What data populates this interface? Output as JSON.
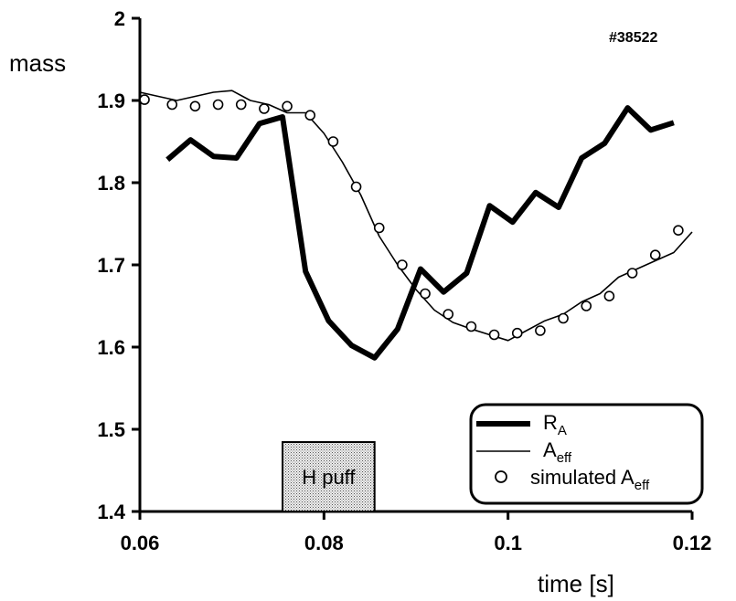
{
  "chart_data": {
    "type": "line",
    "xlabel": "time [s]",
    "ylabel": "mass",
    "annotation": "#38522",
    "xlim": [
      0.06,
      0.12
    ],
    "ylim": [
      1.4,
      2.0
    ],
    "xticks": [
      "0.06",
      "0.08",
      "0.1",
      "0.12"
    ],
    "yticks": [
      "1.4",
      "1.5",
      "1.6",
      "1.7",
      "1.8",
      "1.9",
      "2"
    ],
    "puff": {
      "label": "H puff",
      "start": 0.0755,
      "end": 0.0855
    },
    "legend": {
      "position": "bottom-right",
      "entries": [
        {
          "main": "R",
          "sub": "A",
          "style": "thick-line"
        },
        {
          "main": "A",
          "sub": "eff",
          "style": "thin-line"
        },
        {
          "main": "simulated A",
          "sub": "eff",
          "style": "circle"
        }
      ]
    },
    "series": [
      {
        "name": "R_A",
        "style": "thick",
        "x": [
          0.063,
          0.0655,
          0.068,
          0.0705,
          0.073,
          0.0755,
          0.078,
          0.0805,
          0.083,
          0.0855,
          0.088,
          0.0905,
          0.093,
          0.0955,
          0.098,
          0.1005,
          0.103,
          0.1055,
          0.108,
          0.1105,
          0.113,
          0.1155,
          0.118
        ],
        "y": [
          1.828,
          1.852,
          1.832,
          1.83,
          1.872,
          1.88,
          1.692,
          1.632,
          1.602,
          1.587,
          1.622,
          1.695,
          1.667,
          1.69,
          1.772,
          1.752,
          1.788,
          1.77,
          1.83,
          1.848,
          1.891,
          1.864,
          1.873
        ]
      },
      {
        "name": "A_eff",
        "style": "thin",
        "x": [
          0.06,
          0.062,
          0.064,
          0.066,
          0.068,
          0.07,
          0.072,
          0.074,
          0.076,
          0.078,
          0.08,
          0.082,
          0.084,
          0.086,
          0.088,
          0.09,
          0.092,
          0.094,
          0.096,
          0.098,
          0.1,
          0.102,
          0.104,
          0.106,
          0.108,
          0.11,
          0.112,
          0.114,
          0.116,
          0.118,
          0.12
        ],
        "y": [
          1.91,
          1.905,
          1.9,
          1.905,
          1.91,
          1.912,
          1.9,
          1.895,
          1.885,
          1.885,
          1.86,
          1.825,
          1.785,
          1.735,
          1.7,
          1.67,
          1.645,
          1.63,
          1.622,
          1.615,
          1.608,
          1.62,
          1.632,
          1.64,
          1.655,
          1.665,
          1.685,
          1.695,
          1.705,
          1.715,
          1.74
        ]
      },
      {
        "name": "simulated A_eff",
        "style": "circle",
        "x": [
          0.0605,
          0.0635,
          0.066,
          0.0685,
          0.071,
          0.0735,
          0.076,
          0.0785,
          0.081,
          0.0835,
          0.086,
          0.0885,
          0.091,
          0.0935,
          0.096,
          0.0985,
          0.101,
          0.1035,
          0.106,
          0.1085,
          0.111,
          0.1135,
          0.116,
          0.1185
        ],
        "y": [
          1.901,
          1.895,
          1.893,
          1.895,
          1.895,
          1.89,
          1.893,
          1.882,
          1.85,
          1.795,
          1.745,
          1.7,
          1.665,
          1.64,
          1.625,
          1.615,
          1.617,
          1.62,
          1.635,
          1.65,
          1.662,
          1.69,
          1.712,
          1.742
        ]
      }
    ]
  }
}
